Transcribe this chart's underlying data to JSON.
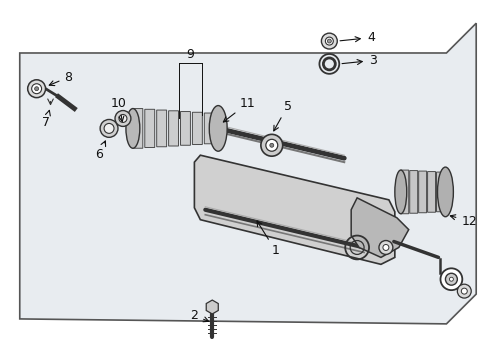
{
  "bg_color": "#ffffff",
  "diagram_bg": "#e8ecf0",
  "line_color": "#333333",
  "border_color": "#555555",
  "label_color": "#111111",
  "font_size": 9
}
